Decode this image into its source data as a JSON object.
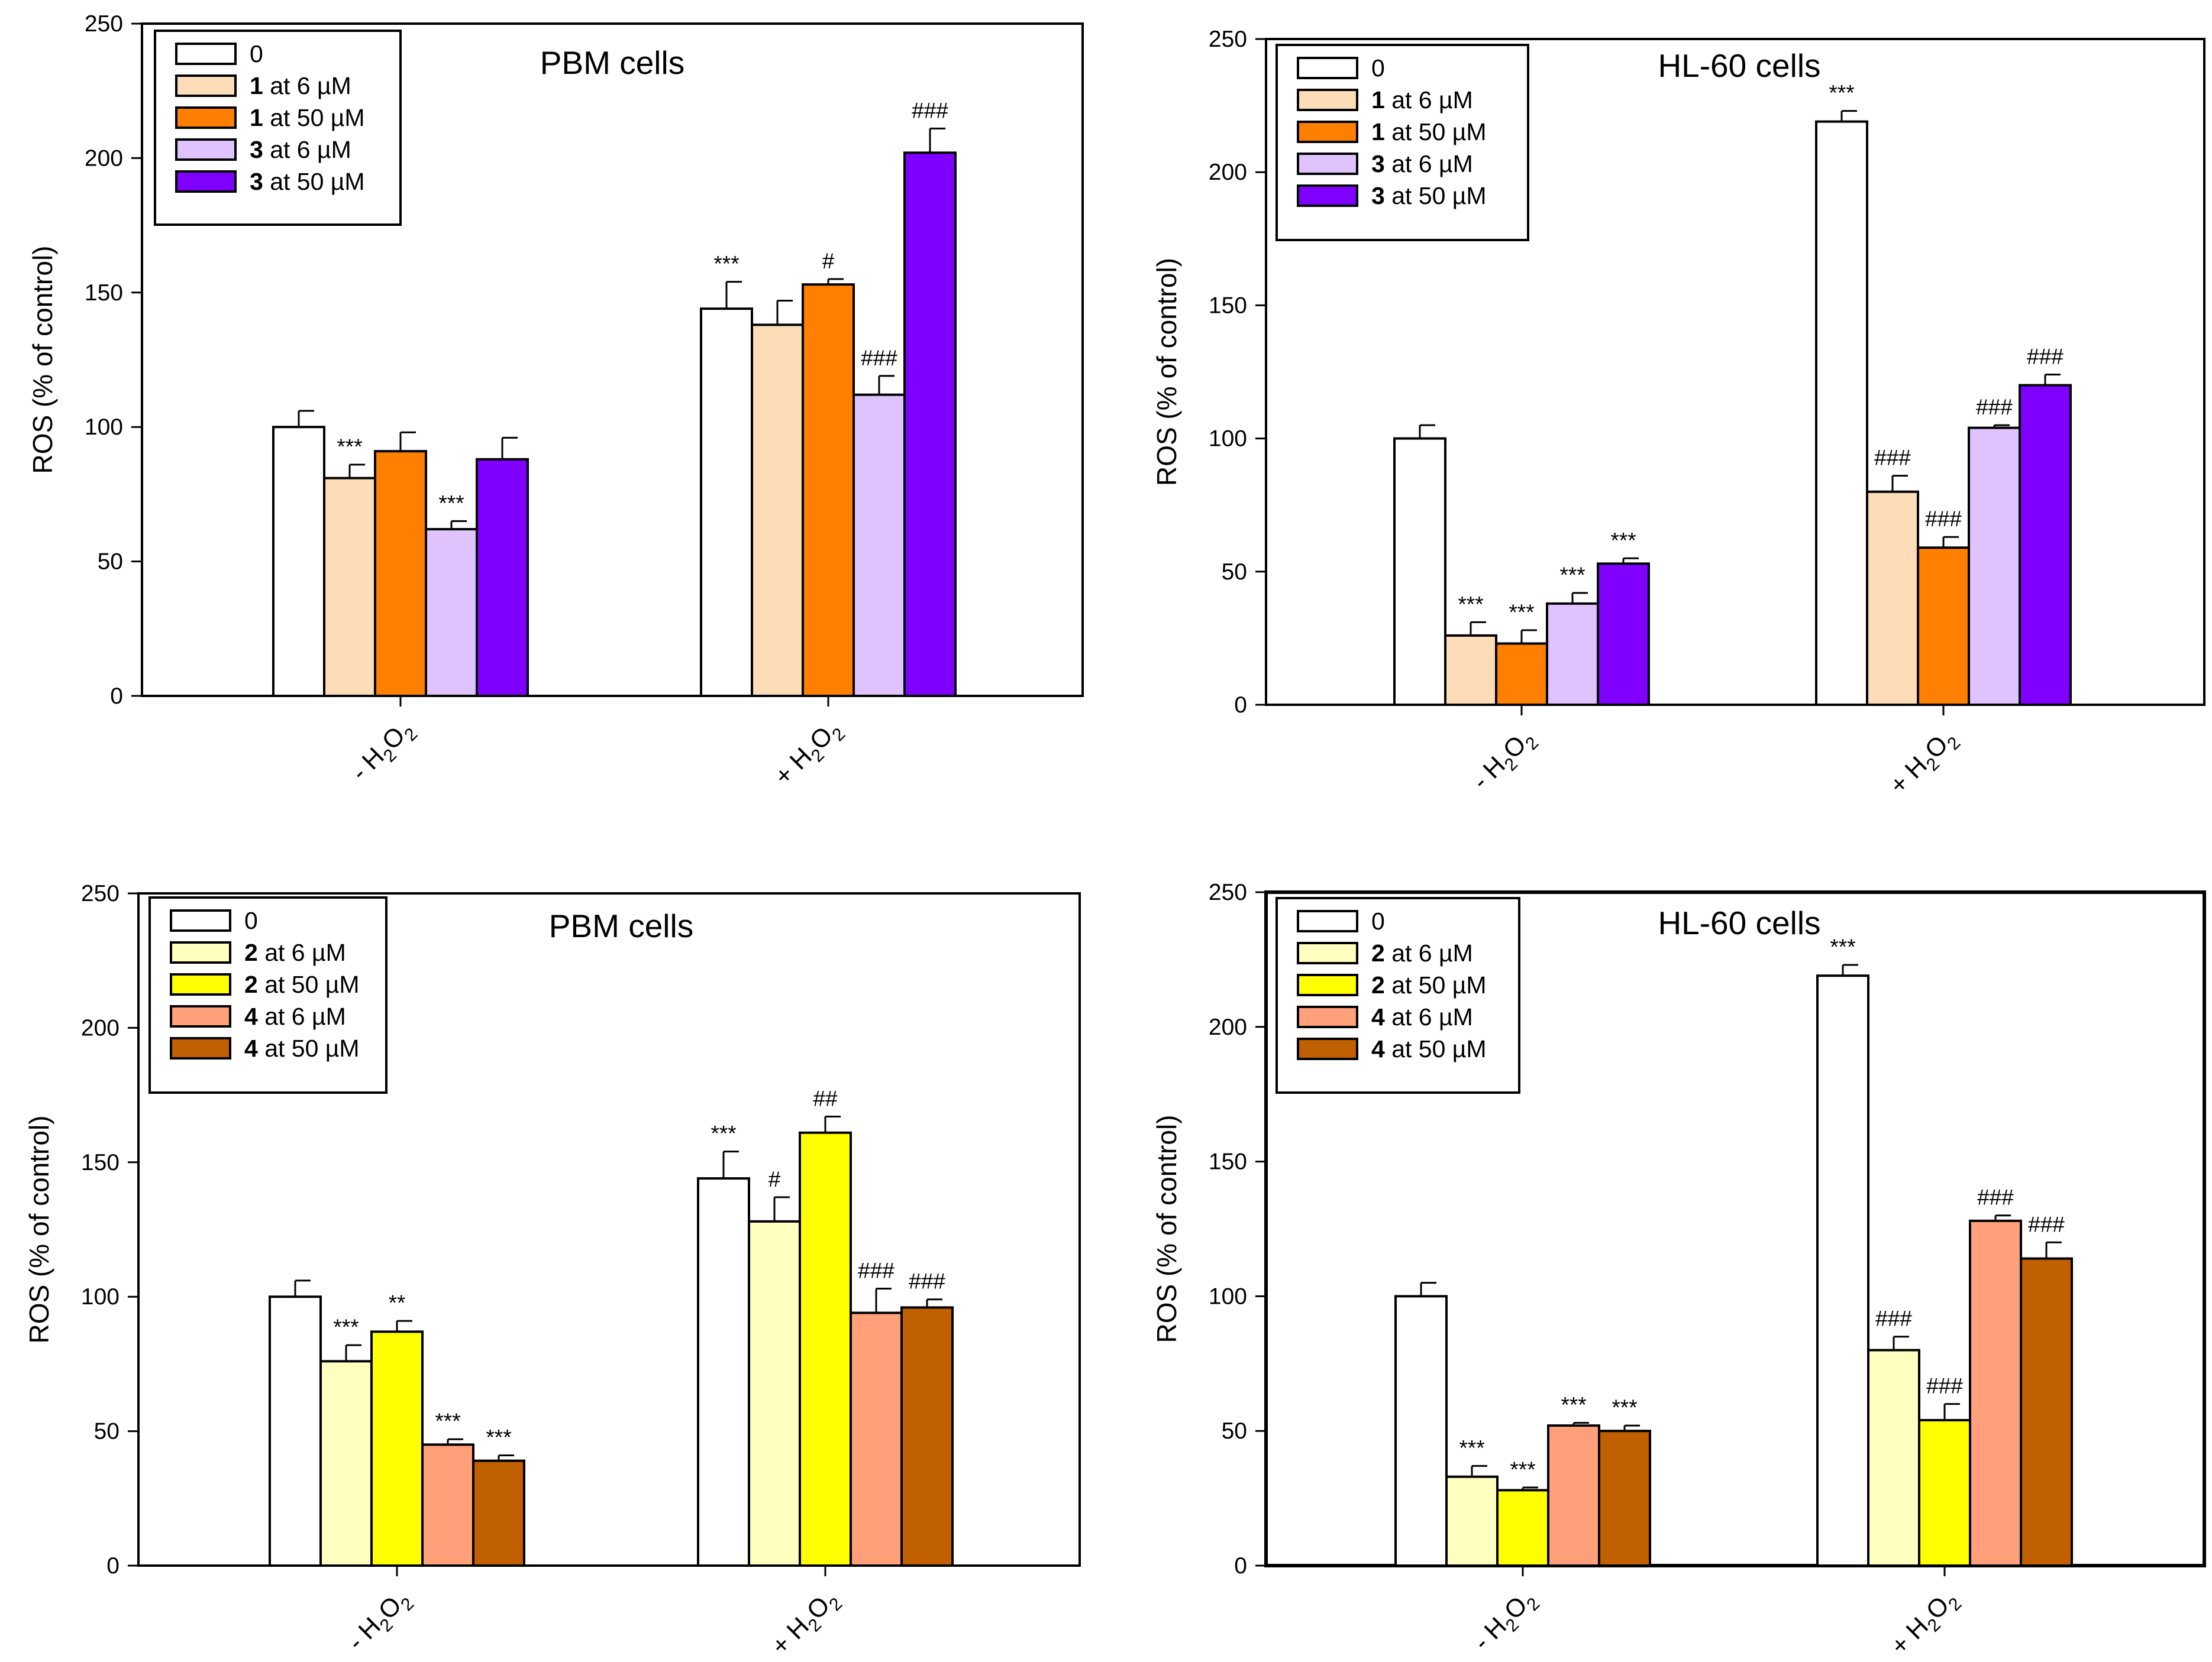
{
  "chart_data": [
    {
      "type": "bar",
      "title": "PBM cells",
      "ylabel": "ROS (% of control)",
      "xlabel": "",
      "ylim": [
        0,
        250
      ],
      "yticks": [
        0,
        50,
        100,
        150,
        200,
        250
      ],
      "categories": [
        {
          "main": "- H",
          "sub": "2",
          "mid": "O",
          "sub2": "2"
        },
        {
          "main": "+ H",
          "sub": "2",
          "mid": "O",
          "sub2": "2"
        }
      ],
      "series": [
        {
          "name": "0",
          "bold": "",
          "rest": "0",
          "color": "#ffffff",
          "values": [
            100,
            144
          ],
          "errors": [
            6,
            10
          ],
          "annotations": [
            "",
            "***"
          ]
        },
        {
          "name": "1 at 6 µM",
          "bold": "1",
          "rest": " at 6 µM",
          "color": "#fddcb8",
          "values": [
            81,
            138
          ],
          "errors": [
            5,
            9
          ],
          "annotations": [
            "***",
            ""
          ]
        },
        {
          "name": "1 at 50 µM",
          "bold": "1",
          "rest": " at 50 µM",
          "color": "#ff7f00",
          "values": [
            91,
            153
          ],
          "errors": [
            7,
            2
          ],
          "annotations": [
            "",
            "#"
          ]
        },
        {
          "name": "3 at 6 µM",
          "bold": "3",
          "rest": " at 6 µM",
          "color": "#dfc3ff",
          "values": [
            62,
            112
          ],
          "errors": [
            3,
            7
          ],
          "annotations": [
            "***",
            "###"
          ]
        },
        {
          "name": "3 at 50 µM",
          "bold": "3",
          "rest": " at 50 µM",
          "color": "#8000ff",
          "values": [
            88,
            202
          ],
          "errors": [
            8,
            9
          ],
          "annotations": [
            "",
            "###"
          ]
        }
      ],
      "legend_position": "top-left"
    },
    {
      "type": "bar",
      "title": "HL-60 cells",
      "ylabel": "ROS (% of control)",
      "xlabel": "",
      "ylim": [
        0,
        250
      ],
      "yticks": [
        0,
        50,
        100,
        150,
        200,
        250
      ],
      "categories": [
        {
          "main": "- H",
          "sub": "2",
          "mid": "O",
          "sub2": "2"
        },
        {
          "main": "+ H",
          "sub": "2",
          "mid": "O",
          "sub2": "2"
        }
      ],
      "series": [
        {
          "name": "0",
          "bold": "",
          "rest": "0",
          "color": "#ffffff",
          "values": [
            100,
            219
          ],
          "errors": [
            5,
            4
          ],
          "annotations": [
            "",
            "***"
          ]
        },
        {
          "name": "1 at 6 µM",
          "bold": "1",
          "rest": " at 6 µM",
          "color": "#fddcb8",
          "values": [
            26,
            80
          ],
          "errors": [
            5,
            6
          ],
          "annotations": [
            "***",
            "###"
          ]
        },
        {
          "name": "1 at 50 µM",
          "bold": "1",
          "rest": " at 50 µM",
          "color": "#ff7f00",
          "values": [
            23,
            59
          ],
          "errors": [
            5,
            4
          ],
          "annotations": [
            "***",
            "###"
          ]
        },
        {
          "name": "3 at 6 µM",
          "bold": "3",
          "rest": " at 6 µM",
          "color": "#dfc3ff",
          "values": [
            38,
            104
          ],
          "errors": [
            4,
            1
          ],
          "annotations": [
            "***",
            "###"
          ]
        },
        {
          "name": "3 at 50 µM",
          "bold": "3",
          "rest": " at 50 µM",
          "color": "#8000ff",
          "values": [
            53,
            120
          ],
          "errors": [
            2,
            4
          ],
          "annotations": [
            "***",
            "###"
          ]
        }
      ],
      "legend_position": "top-left"
    },
    {
      "type": "bar",
      "title": "PBM cells",
      "ylabel": "ROS (% of control)",
      "xlabel": "",
      "ylim": [
        0,
        250
      ],
      "yticks": [
        0,
        50,
        100,
        150,
        200,
        250
      ],
      "categories": [
        {
          "main": "- H",
          "sub": "2",
          "mid": "O",
          "sub2": "2"
        },
        {
          "main": "+ H",
          "sub": "2",
          "mid": "O",
          "sub2": "2"
        }
      ],
      "series": [
        {
          "name": "0",
          "bold": "",
          "rest": "0",
          "color": "#ffffff",
          "values": [
            100,
            144
          ],
          "errors": [
            6,
            10
          ],
          "annotations": [
            "",
            "***"
          ]
        },
        {
          "name": "2 at 6 µM",
          "bold": "2",
          "rest": " at 6 µM",
          "color": "#ffffc0",
          "values": [
            76,
            128
          ],
          "errors": [
            6,
            9
          ],
          "annotations": [
            "***",
            "#"
          ]
        },
        {
          "name": "2 at 50 µM",
          "bold": "2",
          "rest": " at 50 µM",
          "color": "#ffff00",
          "values": [
            87,
            161
          ],
          "errors": [
            4,
            6
          ],
          "annotations": [
            "**",
            "##"
          ]
        },
        {
          "name": "4 at 6 µM",
          "bold": "4",
          "rest": " at 6 µM",
          "color": "#ffa07a",
          "values": [
            45,
            94
          ],
          "errors": [
            2,
            9
          ],
          "annotations": [
            "***",
            "###"
          ]
        },
        {
          "name": "4 at 50 µM",
          "bold": "4",
          "rest": " at 50 µM",
          "color": "#c06000",
          "values": [
            39,
            96
          ],
          "errors": [
            2,
            3
          ],
          "annotations": [
            "***",
            "###"
          ]
        }
      ],
      "legend_position": "top-left"
    },
    {
      "type": "bar",
      "title": "HL-60 cells",
      "ylabel": "ROS (% of control)",
      "xlabel": "",
      "ylim": [
        0,
        250
      ],
      "yticks": [
        0,
        50,
        100,
        150,
        200,
        250
      ],
      "categories": [
        {
          "main": "- H",
          "sub": "2",
          "mid": "O",
          "sub2": "2"
        },
        {
          "main": "+ H",
          "sub": "2",
          "mid": "O",
          "sub2": "2"
        }
      ],
      "series": [
        {
          "name": "0",
          "bold": "",
          "rest": "0",
          "color": "#ffffff",
          "values": [
            100,
            219
          ],
          "errors": [
            5,
            4
          ],
          "annotations": [
            "",
            "***"
          ]
        },
        {
          "name": "2 at 6 µM",
          "bold": "2",
          "rest": " at 6 µM",
          "color": "#ffffc0",
          "values": [
            33,
            80
          ],
          "errors": [
            4,
            5
          ],
          "annotations": [
            "***",
            "###"
          ]
        },
        {
          "name": "2 at 50 µM",
          "bold": "2",
          "rest": " at 50 µM",
          "color": "#ffff00",
          "values": [
            28,
            54
          ],
          "errors": [
            1,
            6
          ],
          "annotations": [
            "***",
            "###"
          ]
        },
        {
          "name": "4 at 6 µM",
          "bold": "4",
          "rest": " at 6 µM",
          "color": "#ffa07a",
          "values": [
            52,
            128
          ],
          "errors": [
            1,
            2
          ],
          "annotations": [
            "***",
            "###"
          ]
        },
        {
          "name": "4 at 50 µM",
          "bold": "4",
          "rest": " at 50 µM",
          "color": "#c06000",
          "values": [
            50,
            114
          ],
          "errors": [
            2,
            6
          ],
          "annotations": [
            "***",
            "###"
          ]
        }
      ],
      "legend_position": "top-left"
    }
  ]
}
